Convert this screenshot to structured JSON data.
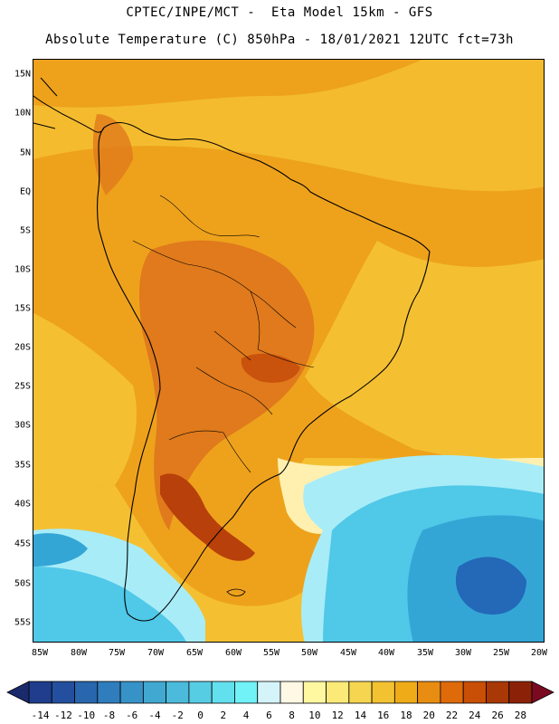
{
  "header": {
    "title_line1": "CPTEC/INPE/MCT -  Eta Model 15km - GFS",
    "title_line2": "Absolute Temperature (C) 850hPa - 18/01/2021 12UTC fct=73h"
  },
  "map": {
    "lat_labels": [
      "15N",
      "10N",
      "5N",
      "EQ",
      "5S",
      "10S",
      "15S",
      "20S",
      "25S",
      "30S",
      "35S",
      "40S",
      "45S",
      "50S",
      "55S"
    ],
    "lon_labels": [
      "85W",
      "80W",
      "75W",
      "70W",
      "65W",
      "60W",
      "55W",
      "50W",
      "45W",
      "40W",
      "35W",
      "30W",
      "25W",
      "20W"
    ],
    "field_colors": {
      "very_hot": "#b8400a",
      "hot": "#e07a1c",
      "warm": "#eea21c",
      "mild": "#f4c032",
      "pale": "#fff0b0",
      "cool": "#a8ecf8",
      "cold": "#50c8e8",
      "colder": "#34a6d6",
      "coldest": "#2468b8",
      "land_outline": "#000000"
    }
  },
  "colorbar": {
    "labels": [
      "-14",
      "-12",
      "-10",
      "-8",
      "-6",
      "-4",
      "-2",
      "0",
      "2",
      "4",
      "6",
      "8",
      "10",
      "12",
      "14",
      "16",
      "18",
      "20",
      "22",
      "24",
      "26",
      "28"
    ],
    "colors": [
      "#1f3d8c",
      "#234f9e",
      "#2866ad",
      "#2f7dbd",
      "#3792c8",
      "#41a8d2",
      "#4cbbdb",
      "#57cde4",
      "#63e0ee",
      "#70f2f7",
      "#d4f4fa",
      "#fff8e4",
      "#fff8a0",
      "#fbe978",
      "#f6d650",
      "#f2c232",
      "#efac18",
      "#e88d12",
      "#df6a0a",
      "#c94e06",
      "#a83806",
      "#8b2208"
    ],
    "left_arrow_color": "#1a2a6c",
    "right_arrow_color": "#7a0a22"
  }
}
